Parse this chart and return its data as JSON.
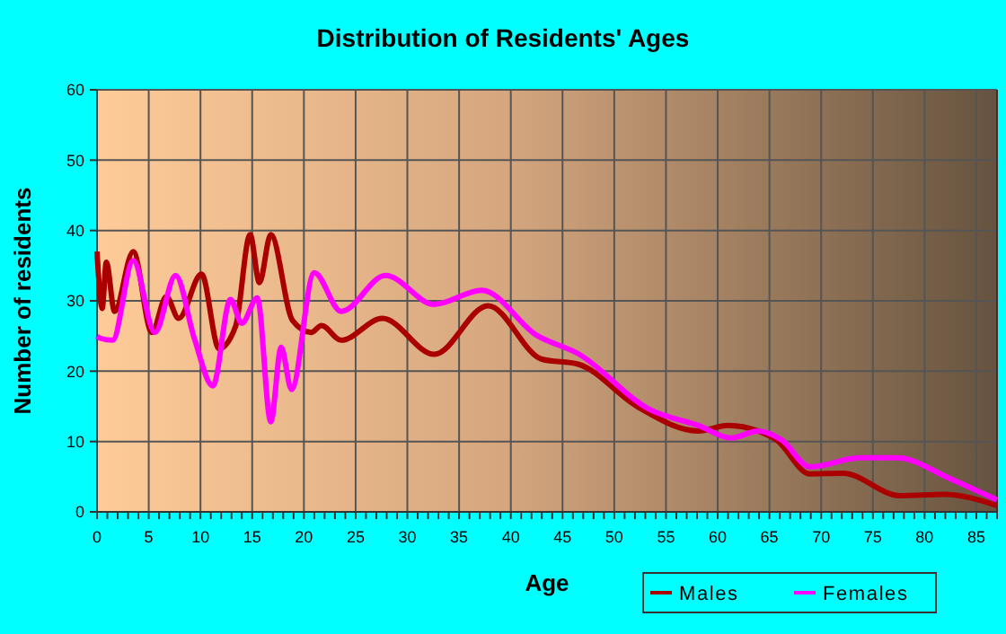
{
  "chart_data": {
    "type": "line",
    "title": "Distribution of Residents' Ages",
    "xlabel": "Age",
    "ylabel": "Number of residents",
    "xlim": [
      0,
      87
    ],
    "xticks": [
      0,
      5,
      10,
      15,
      20,
      25,
      30,
      35,
      40,
      45,
      50,
      55,
      60,
      65,
      70,
      75,
      80,
      85
    ],
    "ylim": [
      0,
      60
    ],
    "yticks": [
      0,
      10,
      20,
      30,
      40,
      50,
      60
    ],
    "grid": true,
    "legend": "bottom right",
    "marker": "none",
    "line_style": "solid",
    "series": [
      {
        "name": "Males",
        "color": "#aa0000",
        "x": [
          0,
          0.5,
          0.9,
          1.7,
          3.5,
          5.3,
          6.7,
          7.9,
          10.1,
          11.8,
          13.4,
          14.8,
          15.7,
          16.8,
          18.9,
          20.7,
          21.7,
          23.6,
          27.6,
          32.6,
          37.8,
          43,
          46.5,
          52.3,
          58.1,
          61,
          63.9,
          65.7,
          68.9,
          72.1,
          77.6,
          81.9,
          87
        ],
        "values": [
          37,
          28.9,
          35.5,
          28.5,
          37,
          25.5,
          30.6,
          27.5,
          33.8,
          23.2,
          26.4,
          39.4,
          32.6,
          39.4,
          27.2,
          25.5,
          26.5,
          24.4,
          27.5,
          22.4,
          29.3,
          21.7,
          21,
          14.9,
          11.5,
          12.3,
          11.5,
          10.2,
          5.4,
          5.5,
          2.3,
          2.5,
          0.9
        ]
      },
      {
        "name": "Females",
        "color": "#ff00ff",
        "x": [
          0,
          0.3,
          1.5,
          3.5,
          5.6,
          7.6,
          9.4,
          11.2,
          12.9,
          14,
          15.5,
          16.8,
          17.8,
          18.8,
          21,
          23.6,
          27.9,
          32.6,
          37.2,
          42.5,
          46.5,
          53.5,
          58.1,
          61.3,
          63.9,
          66.2,
          68.9,
          73.8,
          77.3,
          82.5,
          87
        ],
        "values": [
          25,
          24.7,
          24.4,
          35.7,
          25.5,
          33.6,
          24.7,
          17.9,
          30.2,
          26.8,
          30.4,
          12.8,
          23.4,
          17.4,
          34,
          28.5,
          33.6,
          29.5,
          31.5,
          25.1,
          22.5,
          14.5,
          12.3,
          10.5,
          11.5,
          10.2,
          6.4,
          7.7,
          7.7,
          4.7,
          1.7
        ]
      }
    ]
  }
}
